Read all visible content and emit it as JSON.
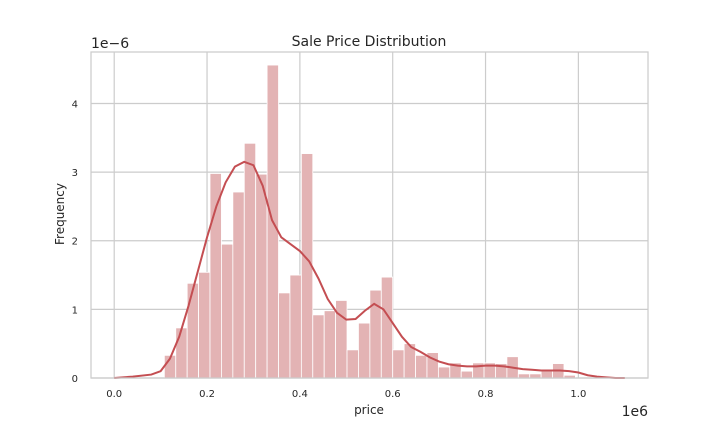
{
  "chart_data": {
    "type": "bar",
    "title": "Sale Price Distribution",
    "xlabel": "price",
    "ylabel": "Frequency",
    "x_offset_label": "1e6",
    "y_offset_label": "1e−6",
    "xlim": [
      -0.05,
      1.15
    ],
    "ylim": [
      0,
      4.75
    ],
    "x_ticks": [
      0.0,
      0.2,
      0.4,
      0.6,
      0.8,
      1.0
    ],
    "x_tick_labels": [
      "0.0",
      "0.2",
      "0.4",
      "0.6",
      "0.8",
      "1.0"
    ],
    "y_ticks": [
      0,
      1,
      2,
      3,
      4
    ],
    "y_tick_labels": [
      "0",
      "1",
      "2",
      "3",
      "4"
    ],
    "grid": true,
    "colors": {
      "bars": "#e3b3b4",
      "kde": "#c44e52",
      "grid": "#cccccc",
      "spine": "#cccccc"
    },
    "histogram": {
      "bin_width": 0.0246,
      "bins": [
        {
          "x0": 0.108,
          "value": 0.33
        },
        {
          "x0": 0.1326,
          "value": 0.73
        },
        {
          "x0": 0.1572,
          "value": 1.38
        },
        {
          "x0": 0.1818,
          "value": 1.54
        },
        {
          "x0": 0.2064,
          "value": 2.98
        },
        {
          "x0": 0.231,
          "value": 1.95
        },
        {
          "x0": 0.2556,
          "value": 2.71
        },
        {
          "x0": 0.2802,
          "value": 3.42
        },
        {
          "x0": 0.3048,
          "value": 2.97
        },
        {
          "x0": 0.3294,
          "value": 4.56
        },
        {
          "x0": 0.354,
          "value": 1.24
        },
        {
          "x0": 0.3786,
          "value": 1.5
        },
        {
          "x0": 0.4032,
          "value": 3.27
        },
        {
          "x0": 0.4278,
          "value": 0.92
        },
        {
          "x0": 0.4524,
          "value": 0.98
        },
        {
          "x0": 0.477,
          "value": 1.13
        },
        {
          "x0": 0.5016,
          "value": 0.41
        },
        {
          "x0": 0.5262,
          "value": 0.8
        },
        {
          "x0": 0.5508,
          "value": 1.28
        },
        {
          "x0": 0.5754,
          "value": 1.47
        },
        {
          "x0": 0.6,
          "value": 0.41
        },
        {
          "x0": 0.6246,
          "value": 0.5
        },
        {
          "x0": 0.6492,
          "value": 0.33
        },
        {
          "x0": 0.6738,
          "value": 0.37
        },
        {
          "x0": 0.6984,
          "value": 0.16
        },
        {
          "x0": 0.723,
          "value": 0.22
        },
        {
          "x0": 0.7476,
          "value": 0.1
        },
        {
          "x0": 0.7722,
          "value": 0.22
        },
        {
          "x0": 0.7968,
          "value": 0.22
        },
        {
          "x0": 0.8214,
          "value": 0.21
        },
        {
          "x0": 0.846,
          "value": 0.31
        },
        {
          "x0": 0.8706,
          "value": 0.06
        },
        {
          "x0": 0.8952,
          "value": 0.06
        },
        {
          "x0": 0.9198,
          "value": 0.1
        },
        {
          "x0": 0.9444,
          "value": 0.21
        },
        {
          "x0": 0.969,
          "value": 0.04
        }
      ]
    },
    "kde": {
      "x": [
        0.0,
        0.04,
        0.08,
        0.1,
        0.12,
        0.14,
        0.16,
        0.18,
        0.2,
        0.22,
        0.24,
        0.26,
        0.28,
        0.3,
        0.32,
        0.34,
        0.36,
        0.38,
        0.4,
        0.42,
        0.44,
        0.46,
        0.48,
        0.5,
        0.52,
        0.54,
        0.56,
        0.58,
        0.6,
        0.62,
        0.64,
        0.66,
        0.68,
        0.7,
        0.72,
        0.74,
        0.76,
        0.78,
        0.8,
        0.82,
        0.84,
        0.86,
        0.88,
        0.9,
        0.92,
        0.94,
        0.96,
        0.98,
        1.0,
        1.02,
        1.04,
        1.06,
        1.08,
        1.1
      ],
      "y": [
        0.0,
        0.02,
        0.05,
        0.1,
        0.28,
        0.6,
        1.05,
        1.55,
        2.05,
        2.5,
        2.85,
        3.08,
        3.15,
        3.1,
        2.8,
        2.3,
        2.05,
        1.95,
        1.85,
        1.7,
        1.45,
        1.15,
        0.95,
        0.85,
        0.86,
        0.98,
        1.08,
        1.0,
        0.8,
        0.6,
        0.45,
        0.38,
        0.3,
        0.24,
        0.2,
        0.18,
        0.17,
        0.17,
        0.18,
        0.18,
        0.17,
        0.15,
        0.13,
        0.12,
        0.11,
        0.11,
        0.11,
        0.1,
        0.08,
        0.04,
        0.02,
        0.01,
        0.0,
        0.0
      ]
    }
  }
}
